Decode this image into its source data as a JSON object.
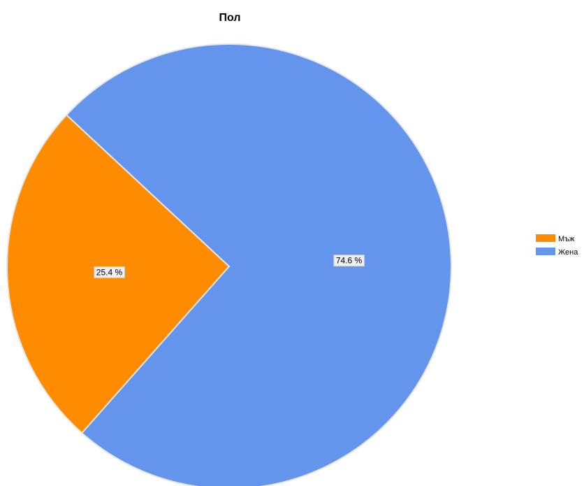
{
  "chart_data": {
    "type": "pie",
    "title": "Пол",
    "slices": [
      {
        "name": "Мъж",
        "value": 25.4,
        "label": "25.4 %",
        "color": "#ff8c00"
      },
      {
        "name": "Жена",
        "value": 74.6,
        "label": "74.6 %",
        "color": "#6495ed"
      }
    ],
    "slice_border_color": "#e6e6e6",
    "label_style": "boxed-inside",
    "legend": {
      "position": "right",
      "items": [
        "Мъж",
        "Жена"
      ]
    }
  }
}
